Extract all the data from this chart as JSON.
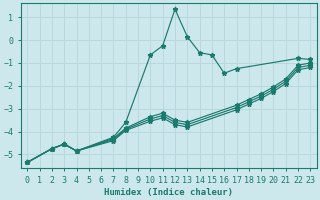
{
  "xlabel": "Humidex (Indice chaleur)",
  "ylabel": "",
  "xlim": [
    -0.5,
    23.5
  ],
  "ylim": [
    -5.6,
    1.6
  ],
  "xticks": [
    0,
    1,
    2,
    3,
    4,
    5,
    6,
    7,
    8,
    9,
    10,
    11,
    12,
    13,
    14,
    15,
    16,
    17,
    18,
    19,
    20,
    21,
    22,
    23
  ],
  "yticks": [
    1,
    0,
    -1,
    -2,
    -3,
    -4,
    -5
  ],
  "background_color": "#cde8ec",
  "line_color": "#1a7a6e",
  "grid_color": "#b8d8dd",
  "series": [
    {
      "x": [
        0,
        2,
        3,
        4,
        7,
        8,
        10,
        11,
        12,
        13,
        14,
        15,
        16,
        17,
        22,
        23
      ],
      "y": [
        -5.35,
        -4.75,
        -4.55,
        -4.85,
        -4.25,
        -3.6,
        -0.65,
        -0.25,
        1.35,
        0.15,
        -0.55,
        -0.65,
        -1.45,
        -1.25,
        -0.8,
        -0.85
      ]
    },
    {
      "x": [
        0,
        2,
        3,
        4,
        7,
        8,
        10,
        11,
        12,
        13,
        17,
        18,
        19,
        20,
        21,
        22,
        23
      ],
      "y": [
        -5.35,
        -4.75,
        -4.55,
        -4.85,
        -4.3,
        -3.85,
        -3.35,
        -3.2,
        -3.5,
        -3.6,
        -2.85,
        -2.6,
        -2.35,
        -2.05,
        -1.7,
        -1.1,
        -1.0
      ]
    },
    {
      "x": [
        0,
        2,
        3,
        4,
        7,
        8,
        10,
        11,
        12,
        13,
        17,
        18,
        19,
        20,
        21,
        22,
        23
      ],
      "y": [
        -5.35,
        -4.75,
        -4.55,
        -4.85,
        -4.35,
        -3.9,
        -3.45,
        -3.3,
        -3.6,
        -3.7,
        -2.95,
        -2.7,
        -2.45,
        -2.15,
        -1.8,
        -1.2,
        -1.1
      ]
    },
    {
      "x": [
        0,
        2,
        3,
        4,
        7,
        8,
        10,
        11,
        12,
        13,
        17,
        18,
        19,
        20,
        21,
        22,
        23
      ],
      "y": [
        -5.35,
        -4.75,
        -4.55,
        -4.85,
        -4.4,
        -3.95,
        -3.55,
        -3.4,
        -3.7,
        -3.8,
        -3.05,
        -2.8,
        -2.55,
        -2.25,
        -1.9,
        -1.3,
        -1.2
      ]
    }
  ]
}
